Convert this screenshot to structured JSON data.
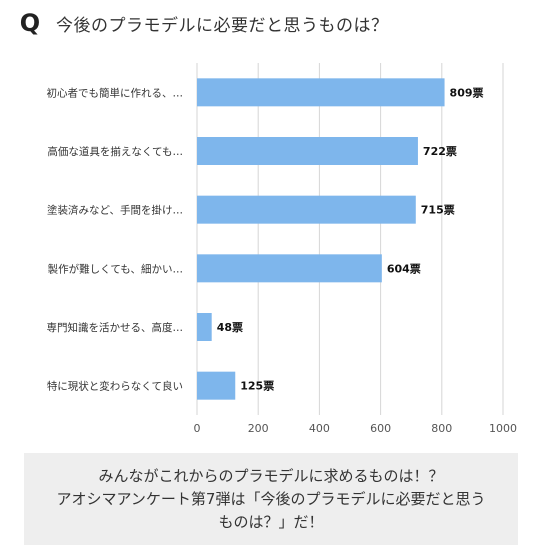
{
  "header": {
    "q_mark": "Q",
    "title": "今後のプラモデルに必要だと思うものは？"
  },
  "chart_data": {
    "type": "bar",
    "orientation": "horizontal",
    "categories": [
      "初心者でも簡単に作れる、…",
      "高価な道具を揃えなくても…",
      "塗装済みなど、手間を掛け…",
      "製作が難しくても、細かい…",
      "専門知識を活かせる、高度…",
      "特に現状と変わらなくて良い"
    ],
    "values": [
      809,
      722,
      715,
      604,
      48,
      125
    ],
    "value_labels": [
      "809票",
      "722票",
      "715票",
      "604票",
      "48票",
      "125票"
    ],
    "xlim": [
      0,
      1000
    ],
    "x_ticks": [
      0,
      200,
      400,
      600,
      800,
      1000
    ],
    "x_tick_labels": [
      "0",
      "200",
      "400",
      "600",
      "800",
      "1000"
    ],
    "bar_color": "#7eb6ec",
    "grid": true
  },
  "footer": {
    "lines": [
      "みんながこれからのプラモデルに求めるものは！？",
      "アオシマアンケート第7弾は「今後のプラモデルに必要だと思う",
      "ものは？」だ！"
    ]
  }
}
